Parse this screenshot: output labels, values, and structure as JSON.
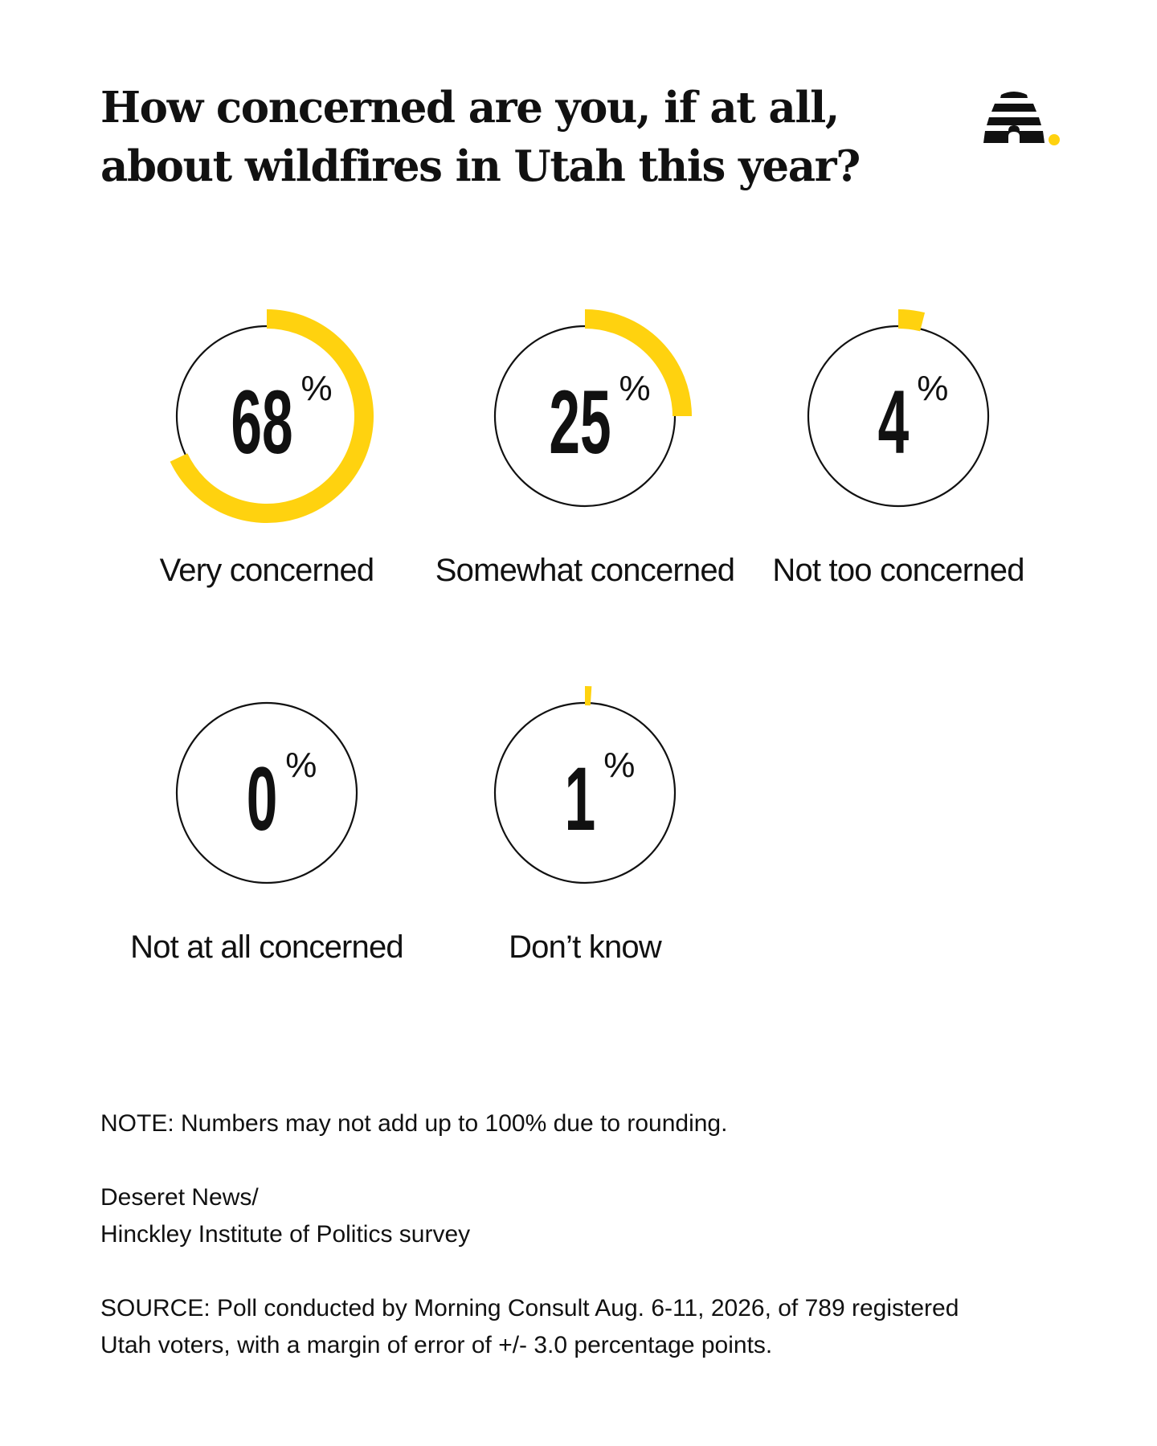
{
  "title": "How concerned are you, if at all, about wildfires in Utah this year?",
  "colors": {
    "accent": "#FFD20F",
    "ink": "#111111",
    "background": "#FFFFFF"
  },
  "logo": {
    "icon": "beehive-logo-icon"
  },
  "chart_data": {
    "type": "donut",
    "unit": "%",
    "categories": [
      "Very concerned",
      "Somewhat concerned",
      "Not too concerned",
      "Not at all concerned",
      "Don’t know"
    ],
    "values": [
      68,
      25,
      4,
      0,
      1
    ],
    "labels": [
      "68",
      "25",
      "4",
      "0",
      "1"
    ],
    "percent_sign": "%",
    "range": [
      0,
      100
    ]
  },
  "note": "NOTE: Numbers may not add up to 100% due to rounding.",
  "credit_line1": "Deseret News/",
  "credit_line2": "Hinckley Institute of Politics survey",
  "source_line1": "SOURCE: Poll conducted by Morning Consult Aug. 6-11, 2026, of 789 registered",
  "source_line2": "Utah voters, with a margin of error of +/- 3.0 percentage points."
}
